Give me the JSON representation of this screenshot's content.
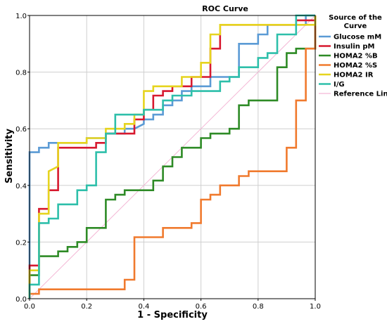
{
  "chart_data": {
    "type": "line",
    "title": "ROC Curve",
    "xlabel": "1 - Specificity",
    "ylabel": "Sensitivity",
    "xlim": [
      0,
      1
    ],
    "ylim": [
      0,
      1
    ],
    "x_ticks": [
      "0.0",
      "0.2",
      "0.4",
      "0.6",
      "0.8",
      "1.0"
    ],
    "y_ticks": [
      "0.0",
      "0.2",
      "0.4",
      "0.6",
      "0.8",
      "1.0"
    ],
    "grid": true,
    "legend": {
      "title_lines": [
        "Source of the",
        "Curve"
      ],
      "placement": "right"
    },
    "series": [
      {
        "name": "Glucose mM",
        "color": "#5b9bd5",
        "points": [
          [
            0,
            0
          ],
          [
            0,
            0.517
          ],
          [
            0.033,
            0.517
          ],
          [
            0.033,
            0.533
          ],
          [
            0.067,
            0.533
          ],
          [
            0.067,
            0.55
          ],
          [
            0.2,
            0.55
          ],
          [
            0.2,
            0.567
          ],
          [
            0.267,
            0.567
          ],
          [
            0.267,
            0.583
          ],
          [
            0.333,
            0.583
          ],
          [
            0.333,
            0.6
          ],
          [
            0.367,
            0.6
          ],
          [
            0.4,
            0.617
          ],
          [
            0.4,
            0.633
          ],
          [
            0.433,
            0.633
          ],
          [
            0.433,
            0.65
          ],
          [
            0.467,
            0.65
          ],
          [
            0.467,
            0.683
          ],
          [
            0.5,
            0.683
          ],
          [
            0.5,
            0.7
          ],
          [
            0.533,
            0.7
          ],
          [
            0.533,
            0.733
          ],
          [
            0.567,
            0.733
          ],
          [
            0.567,
            0.75
          ],
          [
            0.633,
            0.75
          ],
          [
            0.633,
            0.783
          ],
          [
            0.733,
            0.783
          ],
          [
            0.733,
            0.9
          ],
          [
            0.8,
            0.9
          ],
          [
            0.8,
            0.933
          ],
          [
            0.833,
            0.933
          ],
          [
            0.833,
            0.967
          ],
          [
            0.967,
            0.967
          ],
          [
            0.967,
            1.0
          ],
          [
            1.0,
            1.0
          ]
        ]
      },
      {
        "name": "Insulin pM",
        "color": "#d7192f",
        "points": [
          [
            0,
            0
          ],
          [
            0,
            0.117
          ],
          [
            0.033,
            0.117
          ],
          [
            0.033,
            0.317
          ],
          [
            0.067,
            0.317
          ],
          [
            0.067,
            0.383
          ],
          [
            0.1,
            0.383
          ],
          [
            0.1,
            0.533
          ],
          [
            0.233,
            0.533
          ],
          [
            0.233,
            0.55
          ],
          [
            0.267,
            0.55
          ],
          [
            0.267,
            0.583
          ],
          [
            0.367,
            0.583
          ],
          [
            0.367,
            0.633
          ],
          [
            0.4,
            0.633
          ],
          [
            0.4,
            0.667
          ],
          [
            0.433,
            0.667
          ],
          [
            0.433,
            0.717
          ],
          [
            0.467,
            0.717
          ],
          [
            0.467,
            0.733
          ],
          [
            0.5,
            0.733
          ],
          [
            0.5,
            0.75
          ],
          [
            0.567,
            0.75
          ],
          [
            0.567,
            0.783
          ],
          [
            0.633,
            0.783
          ],
          [
            0.633,
            0.883
          ],
          [
            0.667,
            0.883
          ],
          [
            0.667,
            0.967
          ],
          [
            0.933,
            0.967
          ],
          [
            0.933,
            0.983
          ],
          [
            1.0,
            0.983
          ],
          [
            1.0,
            1.0
          ]
        ]
      },
      {
        "name": "HOMA2 %B",
        "color": "#2e8b26",
        "points": [
          [
            0,
            0
          ],
          [
            0,
            0.083
          ],
          [
            0.033,
            0.083
          ],
          [
            0.033,
            0.15
          ],
          [
            0.1,
            0.15
          ],
          [
            0.1,
            0.167
          ],
          [
            0.133,
            0.167
          ],
          [
            0.133,
            0.183
          ],
          [
            0.167,
            0.183
          ],
          [
            0.167,
            0.2
          ],
          [
            0.2,
            0.2
          ],
          [
            0.2,
            0.25
          ],
          [
            0.267,
            0.25
          ],
          [
            0.267,
            0.3
          ],
          [
            0.267,
            0.35
          ],
          [
            0.3,
            0.35
          ],
          [
            0.3,
            0.367
          ],
          [
            0.333,
            0.367
          ],
          [
            0.333,
            0.383
          ],
          [
            0.433,
            0.383
          ],
          [
            0.433,
            0.417
          ],
          [
            0.467,
            0.417
          ],
          [
            0.467,
            0.467
          ],
          [
            0.5,
            0.467
          ],
          [
            0.5,
            0.5
          ],
          [
            0.533,
            0.5
          ],
          [
            0.533,
            0.533
          ],
          [
            0.6,
            0.533
          ],
          [
            0.6,
            0.567
          ],
          [
            0.633,
            0.567
          ],
          [
            0.633,
            0.583
          ],
          [
            0.7,
            0.583
          ],
          [
            0.7,
            0.6
          ],
          [
            0.733,
            0.6
          ],
          [
            0.733,
            0.683
          ],
          [
            0.767,
            0.683
          ],
          [
            0.767,
            0.7
          ],
          [
            0.867,
            0.7
          ],
          [
            0.867,
            0.817
          ],
          [
            0.9,
            0.817
          ],
          [
            0.9,
            0.867
          ],
          [
            0.933,
            0.867
          ],
          [
            0.933,
            0.883
          ],
          [
            1.0,
            0.883
          ],
          [
            1.0,
            1.0
          ]
        ]
      },
      {
        "name": "HOMA2 %S",
        "color": "#f07a2e",
        "points": [
          [
            0,
            0
          ],
          [
            0,
            0.017
          ],
          [
            0.033,
            0.017
          ],
          [
            0.033,
            0.033
          ],
          [
            0.333,
            0.033
          ],
          [
            0.333,
            0.067
          ],
          [
            0.367,
            0.067
          ],
          [
            0.367,
            0.217
          ],
          [
            0.467,
            0.217
          ],
          [
            0.467,
            0.25
          ],
          [
            0.567,
            0.25
          ],
          [
            0.567,
            0.267
          ],
          [
            0.6,
            0.267
          ],
          [
            0.6,
            0.35
          ],
          [
            0.633,
            0.35
          ],
          [
            0.633,
            0.367
          ],
          [
            0.667,
            0.367
          ],
          [
            0.667,
            0.4
          ],
          [
            0.733,
            0.4
          ],
          [
            0.733,
            0.433
          ],
          [
            0.767,
            0.433
          ],
          [
            0.767,
            0.45
          ],
          [
            0.9,
            0.45
          ],
          [
            0.9,
            0.533
          ],
          [
            0.933,
            0.533
          ],
          [
            0.933,
            0.55
          ],
          [
            0.933,
            0.7
          ],
          [
            0.967,
            0.7
          ],
          [
            0.967,
            0.883
          ],
          [
            1.0,
            0.883
          ],
          [
            1.0,
            1.0
          ]
        ]
      },
      {
        "name": "HOMA2 IR",
        "color": "#e6d41f",
        "points": [
          [
            0,
            0
          ],
          [
            0,
            0.1
          ],
          [
            0.033,
            0.1
          ],
          [
            0.033,
            0.3
          ],
          [
            0.067,
            0.3
          ],
          [
            0.067,
            0.45
          ],
          [
            0.1,
            0.467
          ],
          [
            0.1,
            0.55
          ],
          [
            0.2,
            0.55
          ],
          [
            0.2,
            0.567
          ],
          [
            0.267,
            0.567
          ],
          [
            0.267,
            0.6
          ],
          [
            0.333,
            0.6
          ],
          [
            0.333,
            0.617
          ],
          [
            0.367,
            0.617
          ],
          [
            0.367,
            0.65
          ],
          [
            0.4,
            0.65
          ],
          [
            0.4,
            0.733
          ],
          [
            0.433,
            0.733
          ],
          [
            0.433,
            0.75
          ],
          [
            0.533,
            0.75
          ],
          [
            0.533,
            0.783
          ],
          [
            0.6,
            0.783
          ],
          [
            0.6,
            0.833
          ],
          [
            0.633,
            0.833
          ],
          [
            0.633,
            0.933
          ],
          [
            0.667,
            0.933
          ],
          [
            0.667,
            0.967
          ],
          [
            1.0,
            0.967
          ],
          [
            1.0,
            1.0
          ]
        ]
      },
      {
        "name": "I/G",
        "color": "#2ebfaa",
        "points": [
          [
            0,
            0
          ],
          [
            0,
            0.05
          ],
          [
            0.033,
            0.05
          ],
          [
            0.033,
            0.267
          ],
          [
            0.067,
            0.267
          ],
          [
            0.067,
            0.283
          ],
          [
            0.1,
            0.283
          ],
          [
            0.1,
            0.333
          ],
          [
            0.167,
            0.333
          ],
          [
            0.167,
            0.383
          ],
          [
            0.2,
            0.383
          ],
          [
            0.2,
            0.4
          ],
          [
            0.233,
            0.4
          ],
          [
            0.233,
            0.517
          ],
          [
            0.267,
            0.517
          ],
          [
            0.267,
            0.583
          ],
          [
            0.3,
            0.583
          ],
          [
            0.3,
            0.65
          ],
          [
            0.4,
            0.65
          ],
          [
            0.4,
            0.667
          ],
          [
            0.467,
            0.667
          ],
          [
            0.467,
            0.7
          ],
          [
            0.5,
            0.7
          ],
          [
            0.5,
            0.717
          ],
          [
            0.567,
            0.717
          ],
          [
            0.567,
            0.733
          ],
          [
            0.667,
            0.733
          ],
          [
            0.667,
            0.767
          ],
          [
            0.7,
            0.767
          ],
          [
            0.7,
            0.783
          ],
          [
            0.733,
            0.783
          ],
          [
            0.733,
            0.817
          ],
          [
            0.8,
            0.817
          ],
          [
            0.8,
            0.85
          ],
          [
            0.833,
            0.85
          ],
          [
            0.833,
            0.867
          ],
          [
            0.867,
            0.867
          ],
          [
            0.867,
            0.933
          ],
          [
            0.933,
            0.933
          ],
          [
            0.933,
            1.0
          ],
          [
            1.0,
            1.0
          ]
        ]
      },
      {
        "name": "Reference Line",
        "color": "#f4b8d6",
        "points": [
          [
            0,
            0
          ],
          [
            1,
            1
          ]
        ]
      }
    ]
  }
}
